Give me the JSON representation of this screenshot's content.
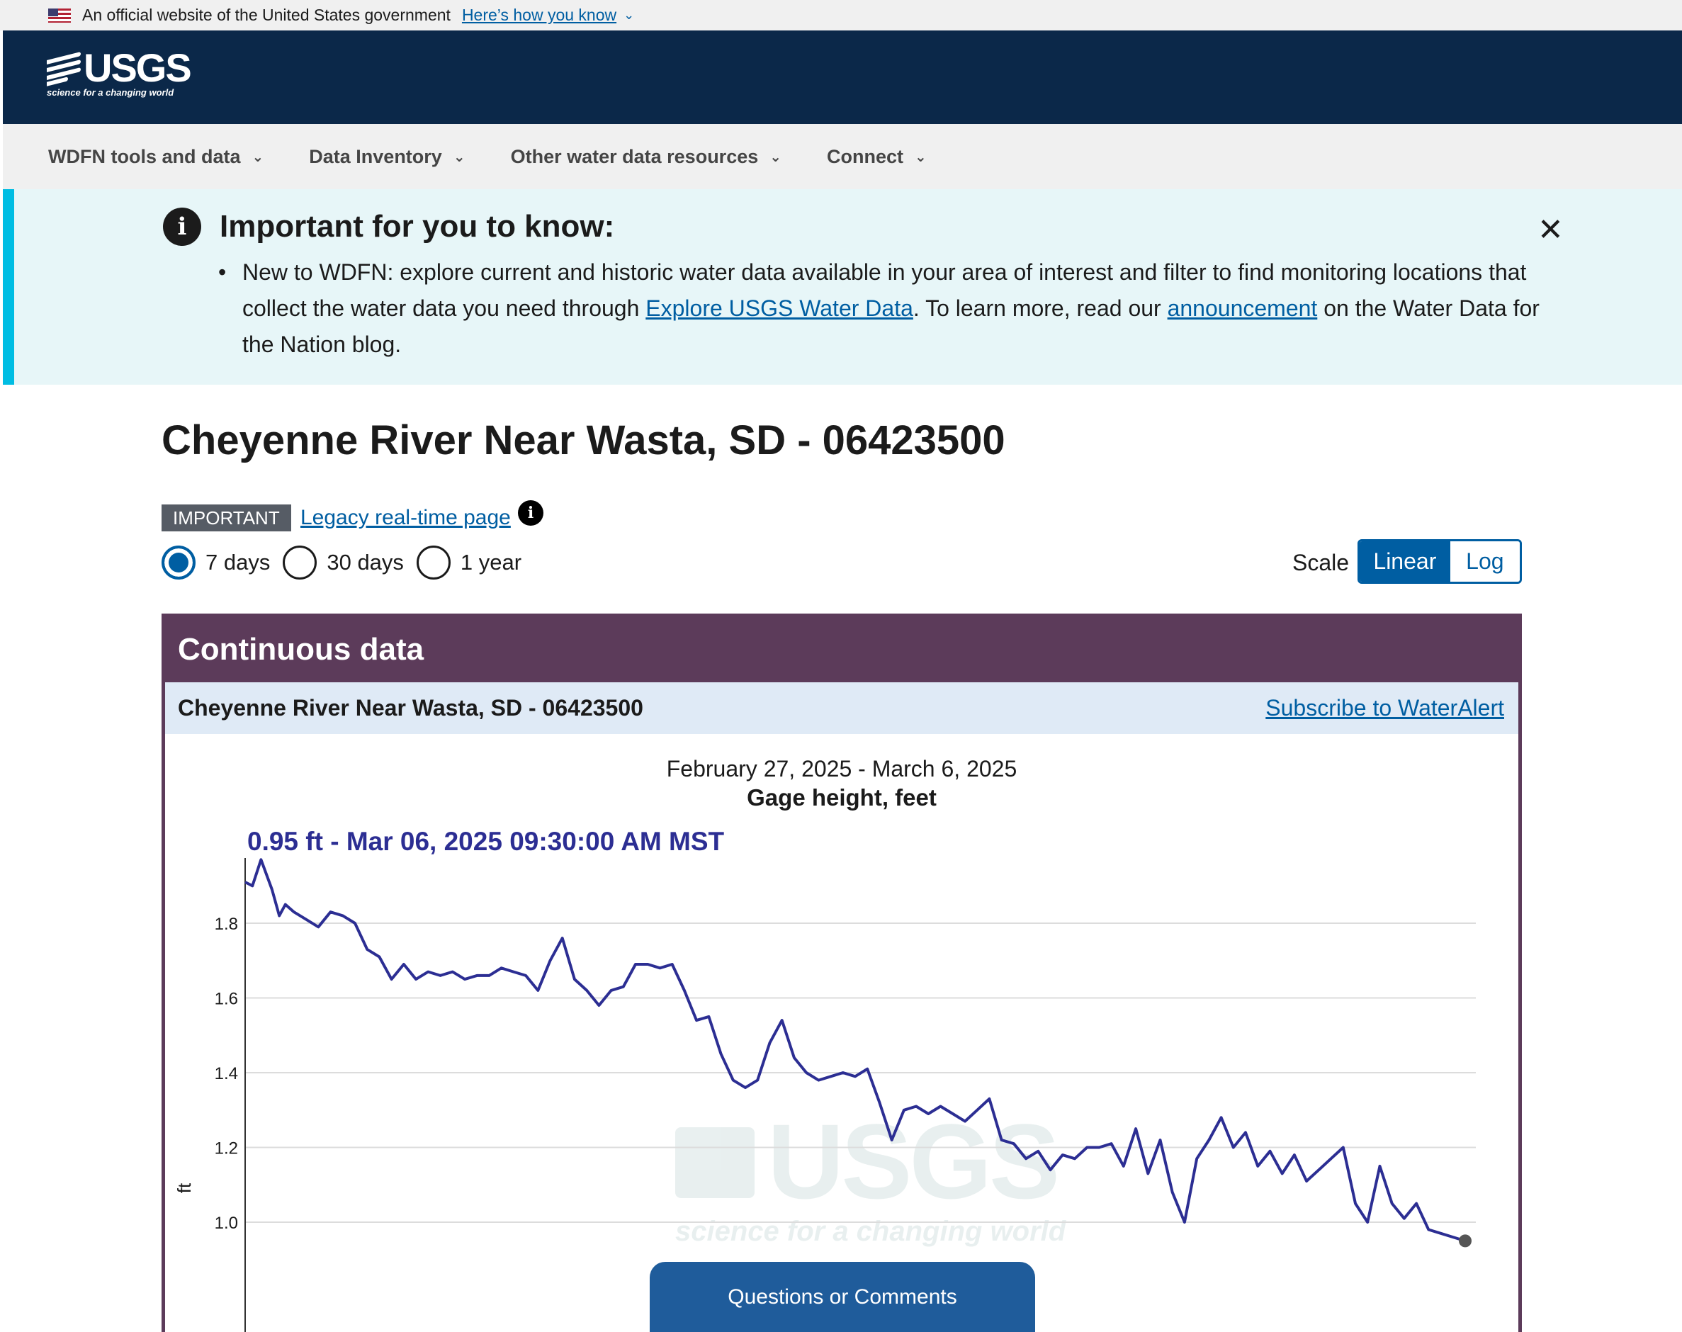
{
  "gov_banner": {
    "text": "An official website of the United States government",
    "link": "Here’s how you know"
  },
  "header": {
    "logo_text": "USGS",
    "logo_tagline": "science for a changing world"
  },
  "nav": {
    "items": [
      {
        "label": "WDFN tools and data"
      },
      {
        "label": "Data Inventory"
      },
      {
        "label": "Other water data resources"
      },
      {
        "label": "Connect"
      }
    ]
  },
  "alert": {
    "heading": "Important for you to know:",
    "body_before": "New to WDFN: explore current and historic water data available in your area of interest and filter to find monitoring locations that collect the water data you need through ",
    "link1": "Explore USGS Water Data",
    "body_middle": ". To learn more, read our ",
    "link2": "announcement",
    "body_after": " on the Water Data for the Nation blog."
  },
  "page": {
    "title": "Cheyenne River Near Wasta, SD - 06423500",
    "important_tag": "IMPORTANT",
    "legacy_link": "Legacy real-time page",
    "periods": [
      {
        "label": "7 days",
        "checked": true
      },
      {
        "label": "30 days",
        "checked": false
      },
      {
        "label": "1 year",
        "checked": false
      }
    ],
    "scale_label": "Scale",
    "scale_options": [
      "Linear",
      "Log"
    ],
    "scale_selected": "Linear"
  },
  "panel": {
    "heading": "Continuous data",
    "site_name": "Cheyenne River Near Wasta, SD - 06423500",
    "subscribe_link": "Subscribe to WaterAlert",
    "questions_button": "Questions or Comments"
  },
  "chart_data": {
    "type": "line",
    "title": "Gage height, feet",
    "subtitle": "February 27, 2025 - March 6, 2025",
    "latest_value_label": "0.95 ft - Mar 06, 2025 09:30:00 AM MST",
    "ylabel": "ft",
    "ylim": [
      0.95,
      2.2
    ],
    "yticks": [
      "1.0",
      "1.2",
      "1.4",
      "1.6",
      "1.8"
    ],
    "grid": true,
    "line_color": "#2c2e93",
    "watermark": "USGS",
    "watermark_tagline": "science for a changing world",
    "series": [
      {
        "x": [
          0,
          0.006,
          0.013,
          0.022,
          0.028,
          0.033,
          0.04,
          0.05,
          0.06,
          0.07,
          0.08,
          0.09,
          0.1,
          0.11,
          0.12,
          0.13,
          0.14,
          0.15,
          0.16,
          0.17,
          0.18,
          0.19,
          0.2,
          0.21,
          0.22,
          0.23,
          0.24,
          0.25,
          0.26,
          0.27,
          0.28,
          0.29,
          0.3,
          0.31,
          0.32,
          0.33,
          0.34,
          0.35,
          0.36,
          0.37,
          0.38,
          0.39,
          0.4,
          0.41,
          0.42,
          0.43,
          0.44,
          0.45,
          0.46,
          0.47,
          0.48,
          0.49,
          0.5,
          0.51,
          0.52,
          0.53,
          0.54,
          0.55,
          0.56,
          0.57,
          0.58,
          0.59,
          0.6,
          0.61,
          0.62,
          0.63,
          0.64,
          0.65,
          0.66,
          0.67,
          0.68,
          0.69,
          0.7,
          0.71,
          0.72,
          0.73,
          0.74,
          0.75,
          0.76,
          0.77,
          0.78,
          0.79,
          0.8,
          0.81,
          0.82,
          0.83,
          0.84,
          0.85,
          0.86,
          0.87,
          0.88,
          0.89,
          0.9,
          0.91,
          0.92,
          0.93,
          0.94,
          0.95,
          0.96,
          0.97,
          0.98,
          0.99,
          1.0
        ],
        "y": [
          1.91,
          1.9,
          1.97,
          1.89,
          1.82,
          1.85,
          1.83,
          1.81,
          1.79,
          1.83,
          1.82,
          1.8,
          1.73,
          1.71,
          1.65,
          1.69,
          1.65,
          1.67,
          1.66,
          1.67,
          1.65,
          1.66,
          1.66,
          1.68,
          1.67,
          1.66,
          1.62,
          1.7,
          1.76,
          1.65,
          1.62,
          1.58,
          1.62,
          1.63,
          1.69,
          1.69,
          1.68,
          1.69,
          1.62,
          1.54,
          1.55,
          1.45,
          1.38,
          1.36,
          1.38,
          1.48,
          1.54,
          1.44,
          1.4,
          1.38,
          1.39,
          1.4,
          1.39,
          1.41,
          1.32,
          1.22,
          1.3,
          1.31,
          1.29,
          1.31,
          1.29,
          1.27,
          1.3,
          1.33,
          1.22,
          1.21,
          1.17,
          1.19,
          1.14,
          1.18,
          1.17,
          1.2,
          1.2,
          1.21,
          1.15,
          1.25,
          1.13,
          1.22,
          1.08,
          1.0,
          1.17,
          1.22,
          1.28,
          1.2,
          1.24,
          1.15,
          1.19,
          1.13,
          1.18,
          1.11,
          1.14,
          1.17,
          1.2,
          1.05,
          1.0,
          1.15,
          1.05,
          1.01,
          1.05,
          0.98,
          0.97,
          0.96,
          0.95
        ]
      }
    ]
  }
}
